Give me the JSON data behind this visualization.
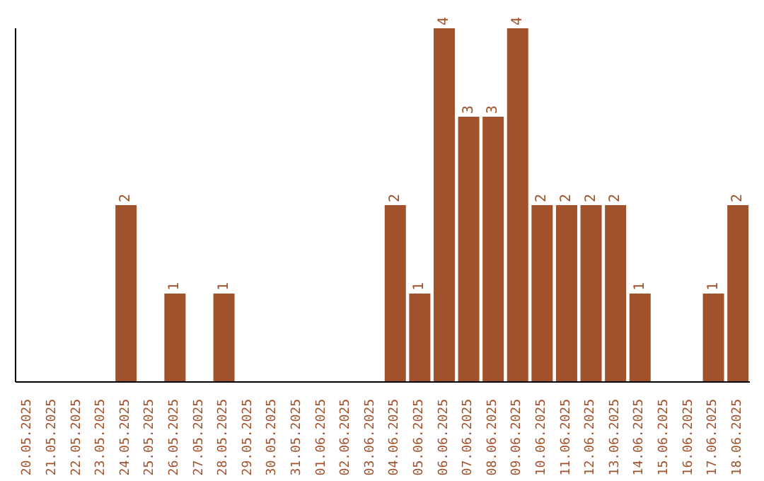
{
  "chart_data": {
    "type": "bar",
    "categories": [
      "20.05.2025",
      "21.05.2025",
      "22.05.2025",
      "23.05.2025",
      "24.05.2025",
      "25.05.2025",
      "26.05.2025",
      "27.05.2025",
      "28.05.2025",
      "29.05.2025",
      "30.05.2025",
      "31.05.2025",
      "01.06.2025",
      "02.06.2025",
      "03.06.2025",
      "04.06.2025",
      "05.06.2025",
      "06.06.2025",
      "07.06.2025",
      "08.06.2025",
      "09.06.2025",
      "10.06.2025",
      "11.06.2025",
      "12.06.2025",
      "13.06.2025",
      "14.06.2025",
      "15.06.2025",
      "16.06.2025",
      "17.06.2025",
      "18.06.2025"
    ],
    "values": [
      0,
      0,
      0,
      0,
      2,
      0,
      1,
      0,
      1,
      0,
      0,
      0,
      0,
      0,
      0,
      2,
      1,
      4,
      3,
      3,
      4,
      2,
      2,
      2,
      2,
      1,
      0,
      0,
      1,
      2
    ],
    "value_labels": [
      null,
      null,
      null,
      null,
      "2",
      null,
      "1",
      null,
      "1",
      null,
      null,
      null,
      null,
      null,
      null,
      "2",
      "1",
      "4",
      "3",
      "3",
      "4",
      "2",
      "2",
      "2",
      "2",
      "1",
      null,
      null,
      "1",
      "2"
    ],
    "color": "#a0522d",
    "ylim": [
      0,
      4
    ],
    "tick_labels": "x",
    "grid": false,
    "legend": false
  }
}
